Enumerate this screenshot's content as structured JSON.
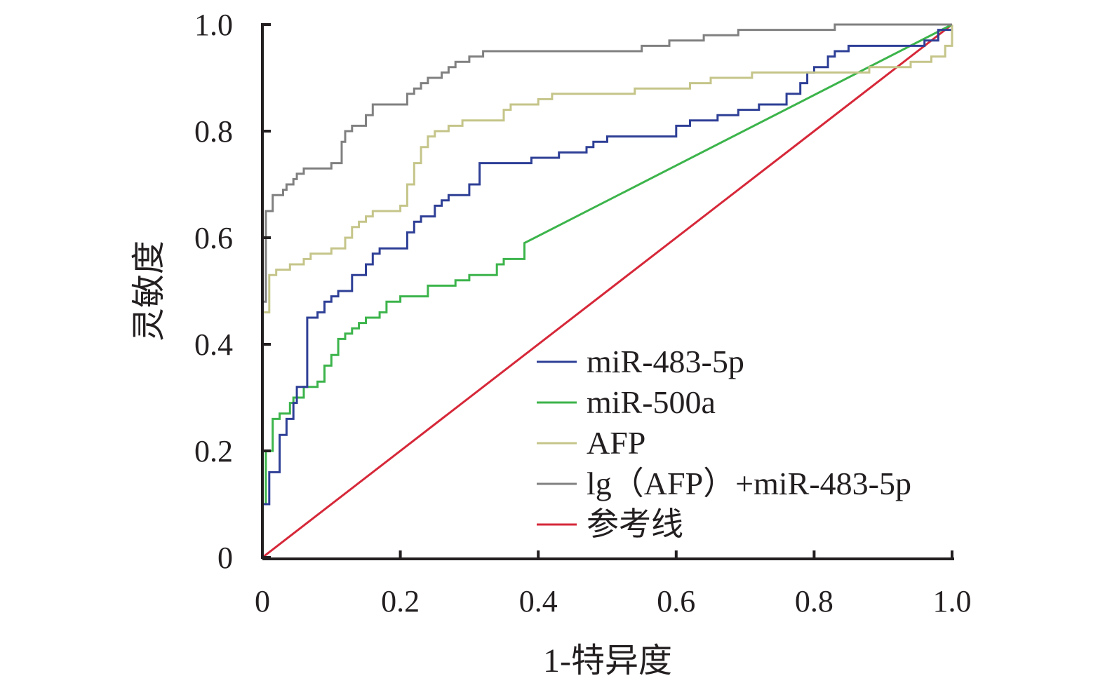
{
  "chart_data": {
    "type": "line",
    "title": "",
    "xlabel": "1-特异度",
    "ylabel": "灵敏度",
    "xlim": [
      0,
      1.0
    ],
    "ylim": [
      0,
      1.0
    ],
    "grid": false,
    "legend_position": "center-right",
    "x_ticks": [
      {
        "value": 0,
        "label": "0"
      },
      {
        "value": 0.2,
        "label": "0.2"
      },
      {
        "value": 0.4,
        "label": "0.4"
      },
      {
        "value": 0.6,
        "label": "0.6"
      },
      {
        "value": 0.8,
        "label": "0.8"
      },
      {
        "value": 1.0,
        "label": "1.0"
      }
    ],
    "y_ticks": [
      {
        "value": 0,
        "label": "0"
      },
      {
        "value": 0.2,
        "label": "0.2"
      },
      {
        "value": 0.4,
        "label": "0.4"
      },
      {
        "value": 0.6,
        "label": "0.6"
      },
      {
        "value": 0.8,
        "label": "0.8"
      },
      {
        "value": 1.0,
        "label": "1.0"
      }
    ],
    "series": [
      {
        "name": "miR-483-5p",
        "color": "#2e3f96",
        "points": [
          [
            0,
            0
          ],
          [
            0,
            0.1
          ],
          [
            0.01,
            0.1
          ],
          [
            0.01,
            0.16
          ],
          [
            0.025,
            0.16
          ],
          [
            0.025,
            0.23
          ],
          [
            0.035,
            0.23
          ],
          [
            0.035,
            0.26
          ],
          [
            0.045,
            0.26
          ],
          [
            0.045,
            0.29
          ],
          [
            0.05,
            0.29
          ],
          [
            0.05,
            0.32
          ],
          [
            0.065,
            0.32
          ],
          [
            0.065,
            0.45
          ],
          [
            0.08,
            0.45
          ],
          [
            0.08,
            0.46
          ],
          [
            0.09,
            0.46
          ],
          [
            0.09,
            0.48
          ],
          [
            0.1,
            0.48
          ],
          [
            0.1,
            0.49
          ],
          [
            0.11,
            0.49
          ],
          [
            0.11,
            0.5
          ],
          [
            0.13,
            0.5
          ],
          [
            0.13,
            0.53
          ],
          [
            0.15,
            0.53
          ],
          [
            0.15,
            0.55
          ],
          [
            0.16,
            0.55
          ],
          [
            0.16,
            0.57
          ],
          [
            0.17,
            0.57
          ],
          [
            0.17,
            0.58
          ],
          [
            0.18,
            0.58
          ],
          [
            0.18,
            0.58
          ],
          [
            0.21,
            0.58
          ],
          [
            0.21,
            0.61
          ],
          [
            0.22,
            0.61
          ],
          [
            0.22,
            0.63
          ],
          [
            0.23,
            0.63
          ],
          [
            0.23,
            0.64
          ],
          [
            0.25,
            0.64
          ],
          [
            0.25,
            0.66
          ],
          [
            0.26,
            0.66
          ],
          [
            0.26,
            0.67
          ],
          [
            0.27,
            0.67
          ],
          [
            0.27,
            0.68
          ],
          [
            0.3,
            0.68
          ],
          [
            0.3,
            0.7
          ],
          [
            0.315,
            0.7
          ],
          [
            0.315,
            0.74
          ],
          [
            0.39,
            0.74
          ],
          [
            0.39,
            0.75
          ],
          [
            0.43,
            0.75
          ],
          [
            0.43,
            0.76
          ],
          [
            0.47,
            0.76
          ],
          [
            0.47,
            0.77
          ],
          [
            0.48,
            0.77
          ],
          [
            0.48,
            0.78
          ],
          [
            0.5,
            0.78
          ],
          [
            0.5,
            0.79
          ],
          [
            0.6,
            0.79
          ],
          [
            0.6,
            0.81
          ],
          [
            0.62,
            0.81
          ],
          [
            0.62,
            0.82
          ],
          [
            0.66,
            0.82
          ],
          [
            0.66,
            0.83
          ],
          [
            0.69,
            0.83
          ],
          [
            0.69,
            0.84
          ],
          [
            0.72,
            0.84
          ],
          [
            0.72,
            0.85
          ],
          [
            0.76,
            0.85
          ],
          [
            0.76,
            0.87
          ],
          [
            0.78,
            0.87
          ],
          [
            0.78,
            0.89
          ],
          [
            0.79,
            0.89
          ],
          [
            0.79,
            0.91
          ],
          [
            0.8,
            0.91
          ],
          [
            0.8,
            0.92
          ],
          [
            0.82,
            0.92
          ],
          [
            0.82,
            0.94
          ],
          [
            0.83,
            0.94
          ],
          [
            0.83,
            0.95
          ],
          [
            0.85,
            0.95
          ],
          [
            0.85,
            0.96
          ],
          [
            0.96,
            0.96
          ],
          [
            0.96,
            0.97
          ],
          [
            0.98,
            0.97
          ],
          [
            0.98,
            0.99
          ],
          [
            1.0,
            0.99
          ],
          [
            1.0,
            1.0
          ]
        ]
      },
      {
        "name": "miR-500a",
        "color": "#3cb44b",
        "points": [
          [
            0,
            0
          ],
          [
            0,
            0.1
          ],
          [
            0.005,
            0.1
          ],
          [
            0.005,
            0.2
          ],
          [
            0.015,
            0.2
          ],
          [
            0.015,
            0.26
          ],
          [
            0.025,
            0.26
          ],
          [
            0.025,
            0.27
          ],
          [
            0.04,
            0.27
          ],
          [
            0.04,
            0.29
          ],
          [
            0.045,
            0.29
          ],
          [
            0.045,
            0.3
          ],
          [
            0.06,
            0.3
          ],
          [
            0.06,
            0.32
          ],
          [
            0.08,
            0.32
          ],
          [
            0.08,
            0.33
          ],
          [
            0.09,
            0.33
          ],
          [
            0.09,
            0.36
          ],
          [
            0.1,
            0.36
          ],
          [
            0.1,
            0.38
          ],
          [
            0.11,
            0.38
          ],
          [
            0.11,
            0.41
          ],
          [
            0.12,
            0.41
          ],
          [
            0.12,
            0.42
          ],
          [
            0.13,
            0.42
          ],
          [
            0.13,
            0.43
          ],
          [
            0.14,
            0.43
          ],
          [
            0.14,
            0.44
          ],
          [
            0.15,
            0.44
          ],
          [
            0.15,
            0.45
          ],
          [
            0.17,
            0.45
          ],
          [
            0.17,
            0.46
          ],
          [
            0.18,
            0.46
          ],
          [
            0.18,
            0.48
          ],
          [
            0.2,
            0.48
          ],
          [
            0.2,
            0.49
          ],
          [
            0.24,
            0.49
          ],
          [
            0.24,
            0.51
          ],
          [
            0.28,
            0.51
          ],
          [
            0.28,
            0.52
          ],
          [
            0.3,
            0.52
          ],
          [
            0.3,
            0.53
          ],
          [
            0.34,
            0.53
          ],
          [
            0.34,
            0.55
          ],
          [
            0.35,
            0.55
          ],
          [
            0.35,
            0.56
          ],
          [
            0.38,
            0.56
          ],
          [
            0.38,
            0.59
          ],
          [
            1.0,
            1.0
          ]
        ]
      },
      {
        "name": "AFP",
        "color": "#c5c58a",
        "points": [
          [
            0,
            0
          ],
          [
            0,
            0.46
          ],
          [
            0.01,
            0.46
          ],
          [
            0.01,
            0.53
          ],
          [
            0.02,
            0.53
          ],
          [
            0.02,
            0.54
          ],
          [
            0.04,
            0.54
          ],
          [
            0.04,
            0.55
          ],
          [
            0.06,
            0.55
          ],
          [
            0.06,
            0.56
          ],
          [
            0.07,
            0.56
          ],
          [
            0.07,
            0.57
          ],
          [
            0.1,
            0.57
          ],
          [
            0.1,
            0.58
          ],
          [
            0.12,
            0.58
          ],
          [
            0.12,
            0.6
          ],
          [
            0.13,
            0.6
          ],
          [
            0.13,
            0.62
          ],
          [
            0.14,
            0.62
          ],
          [
            0.14,
            0.63
          ],
          [
            0.15,
            0.63
          ],
          [
            0.15,
            0.64
          ],
          [
            0.16,
            0.64
          ],
          [
            0.16,
            0.65
          ],
          [
            0.2,
            0.65
          ],
          [
            0.2,
            0.66
          ],
          [
            0.21,
            0.66
          ],
          [
            0.21,
            0.7
          ],
          [
            0.22,
            0.7
          ],
          [
            0.22,
            0.74
          ],
          [
            0.23,
            0.74
          ],
          [
            0.23,
            0.77
          ],
          [
            0.24,
            0.77
          ],
          [
            0.24,
            0.79
          ],
          [
            0.25,
            0.79
          ],
          [
            0.25,
            0.8
          ],
          [
            0.27,
            0.8
          ],
          [
            0.27,
            0.81
          ],
          [
            0.29,
            0.81
          ],
          [
            0.29,
            0.82
          ],
          [
            0.35,
            0.82
          ],
          [
            0.35,
            0.84
          ],
          [
            0.36,
            0.84
          ],
          [
            0.36,
            0.85
          ],
          [
            0.4,
            0.85
          ],
          [
            0.4,
            0.86
          ],
          [
            0.42,
            0.86
          ],
          [
            0.42,
            0.87
          ],
          [
            0.54,
            0.87
          ],
          [
            0.54,
            0.88
          ],
          [
            0.62,
            0.88
          ],
          [
            0.62,
            0.89
          ],
          [
            0.65,
            0.89
          ],
          [
            0.65,
            0.9
          ],
          [
            0.71,
            0.9
          ],
          [
            0.71,
            0.91
          ],
          [
            0.88,
            0.91
          ],
          [
            0.88,
            0.92
          ],
          [
            0.94,
            0.92
          ],
          [
            0.94,
            0.93
          ],
          [
            0.97,
            0.93
          ],
          [
            0.97,
            0.94
          ],
          [
            0.99,
            0.94
          ],
          [
            0.99,
            0.96
          ],
          [
            1.0,
            0.96
          ],
          [
            1.0,
            1.0
          ]
        ]
      },
      {
        "name": "lg（AFP）+miR-483-5p",
        "color": "#808080",
        "points": [
          [
            0,
            0
          ],
          [
            0,
            0.48
          ],
          [
            0.005,
            0.48
          ],
          [
            0.005,
            0.65
          ],
          [
            0.015,
            0.65
          ],
          [
            0.015,
            0.68
          ],
          [
            0.03,
            0.68
          ],
          [
            0.03,
            0.69
          ],
          [
            0.035,
            0.69
          ],
          [
            0.035,
            0.7
          ],
          [
            0.045,
            0.7
          ],
          [
            0.045,
            0.71
          ],
          [
            0.05,
            0.71
          ],
          [
            0.05,
            0.72
          ],
          [
            0.06,
            0.72
          ],
          [
            0.06,
            0.73
          ],
          [
            0.1,
            0.73
          ],
          [
            0.1,
            0.74
          ],
          [
            0.115,
            0.74
          ],
          [
            0.115,
            0.78
          ],
          [
            0.12,
            0.78
          ],
          [
            0.12,
            0.8
          ],
          [
            0.13,
            0.8
          ],
          [
            0.13,
            0.81
          ],
          [
            0.15,
            0.81
          ],
          [
            0.15,
            0.83
          ],
          [
            0.16,
            0.83
          ],
          [
            0.16,
            0.85
          ],
          [
            0.21,
            0.85
          ],
          [
            0.21,
            0.87
          ],
          [
            0.22,
            0.87
          ],
          [
            0.22,
            0.88
          ],
          [
            0.23,
            0.88
          ],
          [
            0.23,
            0.89
          ],
          [
            0.24,
            0.89
          ],
          [
            0.24,
            0.9
          ],
          [
            0.26,
            0.9
          ],
          [
            0.26,
            0.91
          ],
          [
            0.27,
            0.91
          ],
          [
            0.27,
            0.92
          ],
          [
            0.28,
            0.92
          ],
          [
            0.28,
            0.93
          ],
          [
            0.3,
            0.93
          ],
          [
            0.3,
            0.94
          ],
          [
            0.32,
            0.94
          ],
          [
            0.32,
            0.95
          ],
          [
            0.55,
            0.95
          ],
          [
            0.55,
            0.96
          ],
          [
            0.59,
            0.96
          ],
          [
            0.59,
            0.97
          ],
          [
            0.64,
            0.97
          ],
          [
            0.64,
            0.98
          ],
          [
            0.69,
            0.98
          ],
          [
            0.69,
            0.99
          ],
          [
            0.83,
            0.99
          ],
          [
            0.83,
            1.0
          ],
          [
            1.0,
            1.0
          ]
        ]
      },
      {
        "name": "参考线",
        "color": "#d62839",
        "points": [
          [
            0,
            0
          ],
          [
            1.0,
            1.0
          ]
        ]
      }
    ]
  }
}
